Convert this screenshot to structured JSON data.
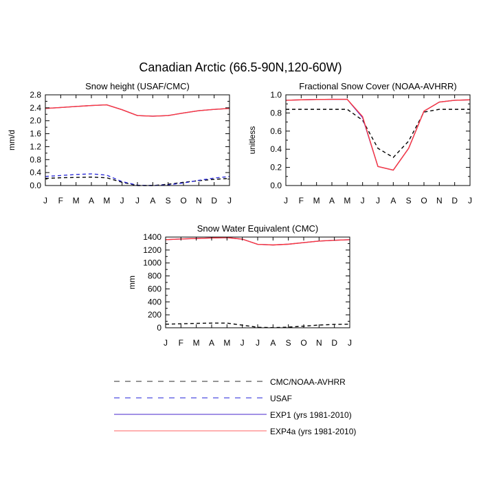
{
  "figure": {
    "title": "Canadian Arctic (66.5-90N,120-60W)"
  },
  "months": [
    "J",
    "F",
    "M",
    "A",
    "M",
    "J",
    "J",
    "A",
    "S",
    "O",
    "N",
    "D",
    "J"
  ],
  "chart_data": [
    {
      "type": "line",
      "title": "Snow height (USAF/CMC)",
      "ylabel": "mm/d",
      "xlabel": "",
      "ylim": [
        0,
        2.8
      ],
      "yticks": [
        0.0,
        0.4,
        0.8,
        1.2,
        1.6,
        2.0,
        2.4,
        2.8
      ],
      "ytick_labels": [
        "0.0",
        "0.4",
        "0.8",
        "1.2",
        "1.6",
        "2.0",
        "2.4",
        "2.8"
      ],
      "categories": [
        "J",
        "F",
        "M",
        "A",
        "M",
        "J",
        "J",
        "A",
        "S",
        "O",
        "N",
        "D",
        "J"
      ],
      "series": [
        {
          "key": "obs",
          "name": "CMC/NOAA-AVHRR",
          "color": "#000000",
          "dash": "5,4",
          "values": [
            0.22,
            0.24,
            0.25,
            0.26,
            0.24,
            0.1,
            0.0,
            0.0,
            0.04,
            0.1,
            0.15,
            0.19,
            0.22
          ]
        },
        {
          "key": "usaf",
          "name": "USAF",
          "color": "#2b2bd6",
          "dash": "5,4",
          "values": [
            0.28,
            0.31,
            0.34,
            0.36,
            0.32,
            0.12,
            0.01,
            0.0,
            0.02,
            0.08,
            0.16,
            0.23,
            0.28
          ]
        },
        {
          "key": "exp1",
          "name": "EXP1 (yrs 1981-2010)",
          "color": "#4b1fd8",
          "dash": "",
          "values": [
            2.38,
            2.41,
            2.44,
            2.47,
            2.49,
            2.34,
            2.16,
            2.14,
            2.16,
            2.24,
            2.31,
            2.35,
            2.38
          ]
        },
        {
          "key": "exp4a",
          "name": "EXP4a (yrs 1981-2010)",
          "color": "#ff3a3a",
          "dash": "",
          "values": [
            2.38,
            2.41,
            2.44,
            2.47,
            2.49,
            2.34,
            2.16,
            2.14,
            2.16,
            2.24,
            2.31,
            2.35,
            2.38
          ]
        }
      ]
    },
    {
      "type": "line",
      "title": "Fractional Snow Cover (NOAA-AVHRR)",
      "ylabel": "unitless",
      "xlabel": "",
      "ylim": [
        0,
        1.0
      ],
      "yticks": [
        0.0,
        0.2,
        0.4,
        0.6,
        0.8,
        1.0
      ],
      "ytick_labels": [
        "0.0",
        "0.2",
        "0.4",
        "0.6",
        "0.8",
        "1.0"
      ],
      "categories": [
        "J",
        "F",
        "M",
        "A",
        "M",
        "J",
        "J",
        "A",
        "S",
        "O",
        "N",
        "D",
        "J"
      ],
      "series": [
        {
          "key": "obs",
          "name": "CMC/NOAA-AVHRR",
          "color": "#000000",
          "dash": "5,4",
          "values": [
            0.84,
            0.84,
            0.84,
            0.84,
            0.84,
            0.72,
            0.41,
            0.31,
            0.49,
            0.81,
            0.84,
            0.84,
            0.84
          ]
        },
        {
          "key": "exp1",
          "name": "EXP1 (yrs 1981-2010)",
          "color": "#4b1fd8",
          "dash": "",
          "values": [
            0.94,
            0.945,
            0.948,
            0.95,
            0.95,
            0.75,
            0.21,
            0.17,
            0.41,
            0.82,
            0.92,
            0.94,
            0.945
          ]
        },
        {
          "key": "exp4a",
          "name": "EXP4a (yrs 1981-2010)",
          "color": "#ff3a3a",
          "dash": "",
          "values": [
            0.94,
            0.945,
            0.948,
            0.95,
            0.95,
            0.76,
            0.21,
            0.17,
            0.41,
            0.82,
            0.92,
            0.94,
            0.945
          ]
        }
      ]
    },
    {
      "type": "line",
      "title": "Snow Water Equivalent (CMC)",
      "ylabel": "mm",
      "xlabel": "",
      "ylim": [
        0,
        1400
      ],
      "yticks": [
        0,
        200,
        400,
        600,
        800,
        1000,
        1200,
        1400
      ],
      "ytick_labels": [
        "0",
        "200",
        "400",
        "600",
        "800",
        "1000",
        "1200",
        "1400"
      ],
      "categories": [
        "J",
        "F",
        "M",
        "A",
        "M",
        "J",
        "J",
        "A",
        "S",
        "O",
        "N",
        "D",
        "J"
      ],
      "series": [
        {
          "key": "obs",
          "name": "CMC/NOAA-AVHRR",
          "color": "#000000",
          "dash": "5,4",
          "values": [
            55,
            62,
            68,
            72,
            72,
            40,
            8,
            2,
            10,
            25,
            42,
            52,
            55
          ]
        },
        {
          "key": "exp1",
          "name": "EXP1 (yrs 1981-2010)",
          "color": "#4b1fd8",
          "dash": "",
          "values": [
            1360,
            1370,
            1378,
            1386,
            1392,
            1368,
            1288,
            1278,
            1290,
            1315,
            1338,
            1350,
            1360
          ]
        },
        {
          "key": "exp4a",
          "name": "EXP4a (yrs 1981-2010)",
          "color": "#ff3a3a",
          "dash": "",
          "values": [
            1360,
            1370,
            1378,
            1386,
            1392,
            1368,
            1288,
            1278,
            1290,
            1315,
            1338,
            1350,
            1360
          ]
        }
      ]
    }
  ],
  "legend": {
    "position": "bottom-center",
    "items": [
      {
        "label": "CMC/NOAA-AVHRR",
        "color": "#555555",
        "dash": "8,8"
      },
      {
        "label": "USAF",
        "color": "#4a4ae0",
        "dash": "8,8"
      },
      {
        "label": "EXP1 (yrs 1981-2010)",
        "color": "#6a4fd6",
        "dash": ""
      },
      {
        "label": "EXP4a (yrs 1981-2010)",
        "color": "#ff8080",
        "dash": ""
      }
    ]
  }
}
